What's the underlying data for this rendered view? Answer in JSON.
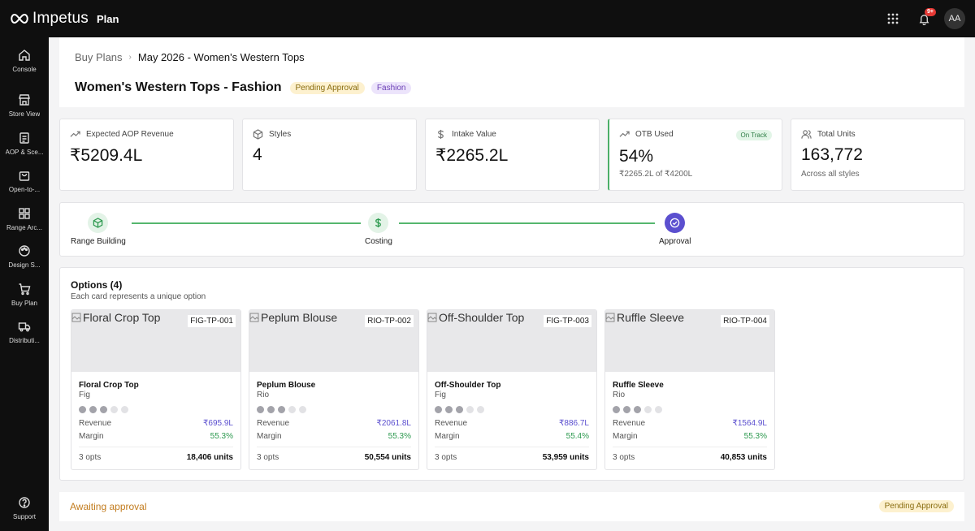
{
  "brand": {
    "name": "Impetus",
    "app": "Plan"
  },
  "topbar": {
    "notif_badge": "9+",
    "avatar": "AA",
    "icons": [
      "grid-icon",
      "bell-icon"
    ]
  },
  "sidebar": {
    "items": [
      {
        "label": "Console",
        "icon": "home-icon"
      },
      {
        "label": "Store View",
        "icon": "store-icon"
      },
      {
        "label": "AOP & Sce...",
        "icon": "clipboard-icon"
      },
      {
        "label": "Open-to-...",
        "icon": "bag-icon"
      },
      {
        "label": "Range Arc...",
        "icon": "grid-icon"
      },
      {
        "label": "Design S...",
        "icon": "palette-icon"
      },
      {
        "label": "Buy Plan",
        "icon": "cart-icon"
      },
      {
        "label": "Distributi...",
        "icon": "truck-icon"
      }
    ],
    "support": {
      "label": "Support",
      "icon": "help-icon"
    }
  },
  "breadcrumb": {
    "parent": "Buy Plans",
    "current": "May 2026 - Women's Western Tops"
  },
  "header": {
    "title": "Women's Western Tops - Fashion",
    "status": "Pending Approval",
    "category": "Fashion"
  },
  "kpis": [
    {
      "label": "Expected AOP Revenue",
      "value": "₹5209.4L",
      "icon": "trend-icon"
    },
    {
      "label": "Styles",
      "value": "4",
      "icon": "cube-icon"
    },
    {
      "label": "Intake Value",
      "value": "₹2265.2L",
      "icon": "dollar-icon"
    },
    {
      "label": "OTB Used",
      "value": "54%",
      "sub": "₹2265.2L of ₹4200L",
      "badge": "On Track",
      "icon": "trend-icon",
      "progress_pct": 54
    },
    {
      "label": "Total Units",
      "value": "163,772",
      "sub": "Across all styles",
      "icon": "users-icon"
    }
  ],
  "stepper": {
    "steps": [
      {
        "label": "Range Building",
        "state": "done"
      },
      {
        "label": "Costing",
        "state": "done"
      },
      {
        "label": "Approval",
        "state": "active"
      }
    ]
  },
  "options": {
    "title": "Options (4)",
    "subtitle": "Each card represents a unique option",
    "cards": [
      {
        "name": "Floral Crop Top",
        "code": "FIG-TP-001",
        "brand": "Fig",
        "dots_filled": 3,
        "dots_total": 5,
        "revenue_label": "Revenue",
        "revenue": "₹695.9L",
        "margin_label": "Margin",
        "margin": "55.3%",
        "opts": "3 opts",
        "units": "18,406 units"
      },
      {
        "name": "Peplum Blouse",
        "code": "RIO-TP-002",
        "brand": "Rio",
        "dots_filled": 3,
        "dots_total": 5,
        "revenue_label": "Revenue",
        "revenue": "₹2061.8L",
        "margin_label": "Margin",
        "margin": "55.3%",
        "opts": "3 opts",
        "units": "50,554 units"
      },
      {
        "name": "Off-Shoulder Top",
        "code": "FIG-TP-003",
        "brand": "Fig",
        "dots_filled": 3,
        "dots_total": 5,
        "revenue_label": "Revenue",
        "revenue": "₹886.7L",
        "margin_label": "Margin",
        "margin": "55.4%",
        "opts": "3 opts",
        "units": "53,959 units"
      },
      {
        "name": "Ruffle Sleeve",
        "code": "RIO-TP-004",
        "brand": "Rio",
        "dots_filled": 3,
        "dots_total": 5,
        "revenue_label": "Revenue",
        "revenue": "₹1564.9L",
        "margin_label": "Margin",
        "margin": "55.3%",
        "opts": "3 opts",
        "units": "40,853 units"
      }
    ]
  },
  "footer": {
    "status_text": "Awaiting approval",
    "badge": "Pending Approval"
  },
  "colors": {
    "accent": "#5b4fcf",
    "success": "#2e9a50",
    "warning": "#c27c1e",
    "dark": "#0f0f0f"
  }
}
